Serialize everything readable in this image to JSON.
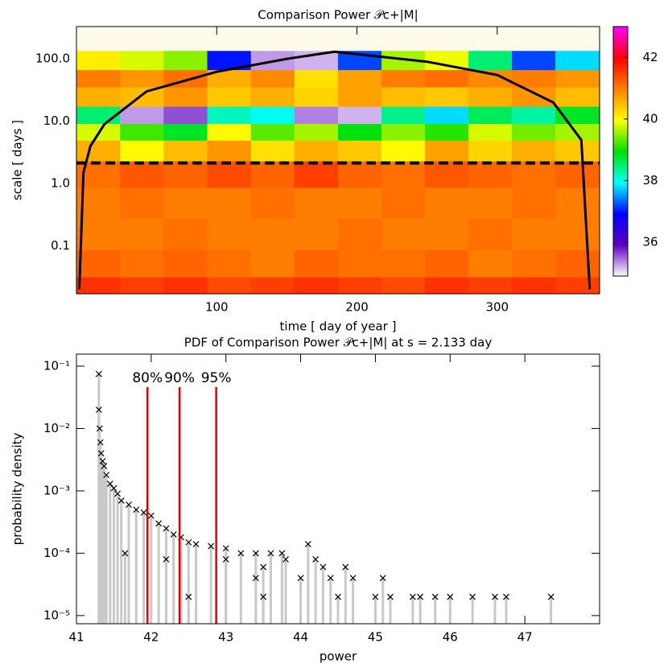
{
  "chart_data": [
    {
      "type": "heatmap",
      "title": "Comparison Power 𝒫c+|M|",
      "xlabel": "time [ day of year ]",
      "ylabel": "scale [ days ]",
      "xlim": [
        0,
        373
      ],
      "xticks": [
        100,
        200,
        300
      ],
      "ylim": [
        0.017,
        330
      ],
      "ylog": true,
      "yticks": [
        {
          "value": 0.1,
          "label": "0.1"
        },
        {
          "value": 1,
          "label": "1.0"
        },
        {
          "value": 10,
          "label": "10.0"
        },
        {
          "value": 100,
          "label": "100.0"
        }
      ],
      "x": [
        15.5,
        46.6,
        77.7,
        108.8,
        139.9,
        171,
        202,
        233,
        264,
        295,
        326,
        357
      ],
      "y": [
        0.02,
        0.05,
        0.15,
        0.5,
        1.5,
        3.5,
        7,
        12,
        25,
        50,
        90,
        200
      ],
      "z": [
        [
          41.6,
          41.5,
          41.6,
          41.4,
          41.5,
          41.6,
          41.5,
          41.4,
          41.6,
          41.5,
          41.6,
          41.5
        ],
        [
          41.2,
          41.1,
          41.2,
          41.1,
          41.0,
          41.2,
          41.1,
          41.1,
          41.2,
          41.0,
          41.1,
          41.2
        ],
        [
          41.0,
          41.0,
          41.1,
          41.0,
          41.0,
          41.0,
          41.1,
          41.0,
          41.0,
          41.1,
          41.0,
          41.0
        ],
        [
          41.0,
          41.1,
          41.0,
          41.0,
          41.1,
          41.0,
          41.0,
          41.1,
          41.0,
          41.0,
          41.1,
          41.0
        ],
        [
          41.1,
          41.3,
          41.2,
          41.4,
          41.2,
          41.5,
          41.2,
          41.1,
          41.3,
          41.2,
          41.1,
          41.2
        ],
        [
          40.6,
          40.0,
          40.5,
          40.8,
          40.2,
          40.6,
          40.4,
          40.0,
          40.7,
          40.3,
          40.6,
          40.4
        ],
        [
          39.8,
          39.2,
          38.8,
          40.0,
          39.3,
          39.6,
          38.9,
          39.5,
          39.1,
          39.8,
          39.4,
          39.6
        ],
        [
          38.5,
          35.3,
          35.6,
          38.2,
          38.0,
          35.4,
          35.2,
          38.4,
          37.8,
          38.6,
          38.3,
          38.8
        ],
        [
          40.6,
          40.5,
          40.8,
          40.4,
          40.6,
          40.3,
          40.7,
          40.5,
          40.4,
          40.6,
          40.8,
          40.5
        ],
        [
          41.0,
          40.8,
          41.1,
          40.6,
          40.9,
          40.2,
          40.7,
          41.0,
          41.1,
          40.9,
          41.0,
          40.8
        ],
        [
          40.1,
          39.8,
          39.5,
          37.0,
          35.3,
          35.2,
          37.2,
          39.6,
          39.9,
          38.5,
          37.2,
          37.8
        ],
        [
          null,
          null,
          null,
          null,
          null,
          null,
          null,
          null,
          null,
          null,
          null,
          null
        ]
      ],
      "zlim": [
        34.9,
        43
      ],
      "zticks": [
        36,
        38,
        40,
        42
      ],
      "colormap": [
        "#ffffff",
        "#6000c0",
        "#0000ff",
        "#00ffff",
        "#00e000",
        "#ffff00",
        "#ff8000",
        "#ff0000",
        "#ff00ff"
      ],
      "cone": {
        "x": [
          2,
          5,
          10,
          20,
          50,
          100,
          150,
          184,
          250,
          300,
          340,
          360,
          366
        ],
        "y": [
          0.02,
          1.5,
          4,
          9,
          30,
          62,
          100,
          130,
          90,
          55,
          20,
          5,
          0.02
        ]
      },
      "cut_scale": 2.133
    },
    {
      "type": "scatter",
      "title": "PDF of Comparison Power 𝒫c+|M| at s = 2.133 day",
      "xlabel": "power",
      "ylabel": "probability density",
      "xlim": [
        41,
        48
      ],
      "xticks": [
        41,
        42,
        43,
        44,
        45,
        46,
        47
      ],
      "ylim": [
        7.4e-06,
        0.156
      ],
      "ylog": true,
      "yticks": [
        {
          "value": 1e-05,
          "label": "10⁻⁵"
        },
        {
          "value": 0.0001,
          "label": "10⁻⁴"
        },
        {
          "value": 0.001,
          "label": "10⁻³"
        },
        {
          "value": 0.01,
          "label": "10⁻²"
        },
        {
          "value": 0.1,
          "label": "10⁻¹"
        }
      ],
      "x": [
        41.3,
        41.3,
        41.31,
        41.32,
        41.33,
        41.35,
        41.37,
        41.4,
        41.45,
        41.5,
        41.55,
        41.6,
        41.7,
        41.8,
        41.9,
        42.0,
        42.1,
        42.2,
        42.3,
        42.4,
        42.5,
        42.6,
        42.8,
        43.0,
        43.2,
        43.4,
        43.6,
        43.75,
        41.65,
        42.2,
        43.0,
        43.8,
        44.2,
        43.5,
        44.3,
        44.6,
        43.4,
        44.0,
        44.4,
        44.7,
        45.1,
        42.5,
        43.5,
        44.5,
        45.0,
        45.2,
        45.5,
        45.6,
        45.8,
        46.0,
        46.3,
        46.6,
        46.75,
        47.35,
        44.1
      ],
      "values": [
        0.075,
        0.02,
        0.01,
        0.006,
        0.004,
        0.003,
        0.0025,
        0.0018,
        0.0013,
        0.0011,
        0.0009,
        0.0007,
        0.0006,
        0.0005,
        0.00045,
        0.0004,
        0.0003,
        0.00025,
        0.0002,
        0.00018,
        0.00015,
        0.00014,
        0.00013,
        0.00012,
        0.0001,
        0.0001,
        0.0001,
        0.0001,
        0.0001,
        8e-05,
        8e-05,
        8e-05,
        8e-05,
        6e-05,
        6e-05,
        6e-05,
        4e-05,
        4e-05,
        4e-05,
        4e-05,
        4e-05,
        2e-05,
        2e-05,
        2e-05,
        2e-05,
        2e-05,
        2e-05,
        2e-05,
        2e-05,
        2e-05,
        2e-05,
        2e-05,
        2e-05,
        2e-05,
        0.00014
      ],
      "vlines": [
        {
          "x": 41.95,
          "label": "80%"
        },
        {
          "x": 42.38,
          "label": "90%"
        },
        {
          "x": 42.87,
          "label": "95%"
        }
      ]
    }
  ]
}
